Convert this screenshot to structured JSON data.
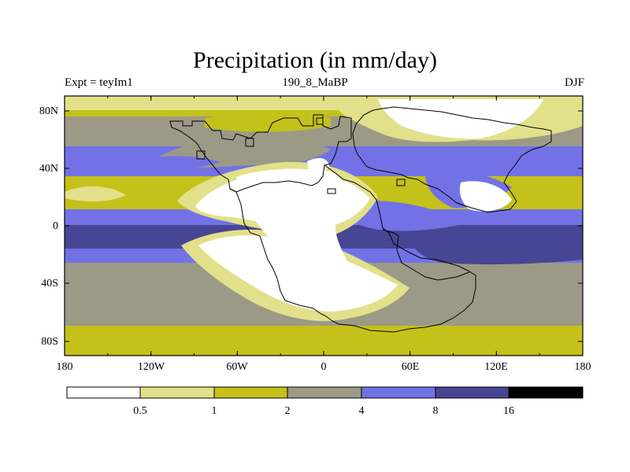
{
  "title": "Precipitation (in mm/day)",
  "subtitle_left": "Expt = teyIm1",
  "subtitle_center": "190_8_MaBP",
  "subtitle_right": "DJF",
  "x_ticks": [
    "180",
    "120W",
    "60W",
    "0",
    "60E",
    "120E",
    "180"
  ],
  "y_ticks": [
    "80N",
    "40N",
    "0",
    "40S",
    "80S"
  ],
  "colorbar": {
    "colors": [
      "#ffffff",
      "#e2e08a",
      "#c4c11a",
      "#9c9a86",
      "#7272e6",
      "#474694",
      "#000000"
    ],
    "labels": [
      "0.5",
      "1",
      "2",
      "4",
      "8",
      "16"
    ]
  },
  "legend_units": "mm/day"
}
